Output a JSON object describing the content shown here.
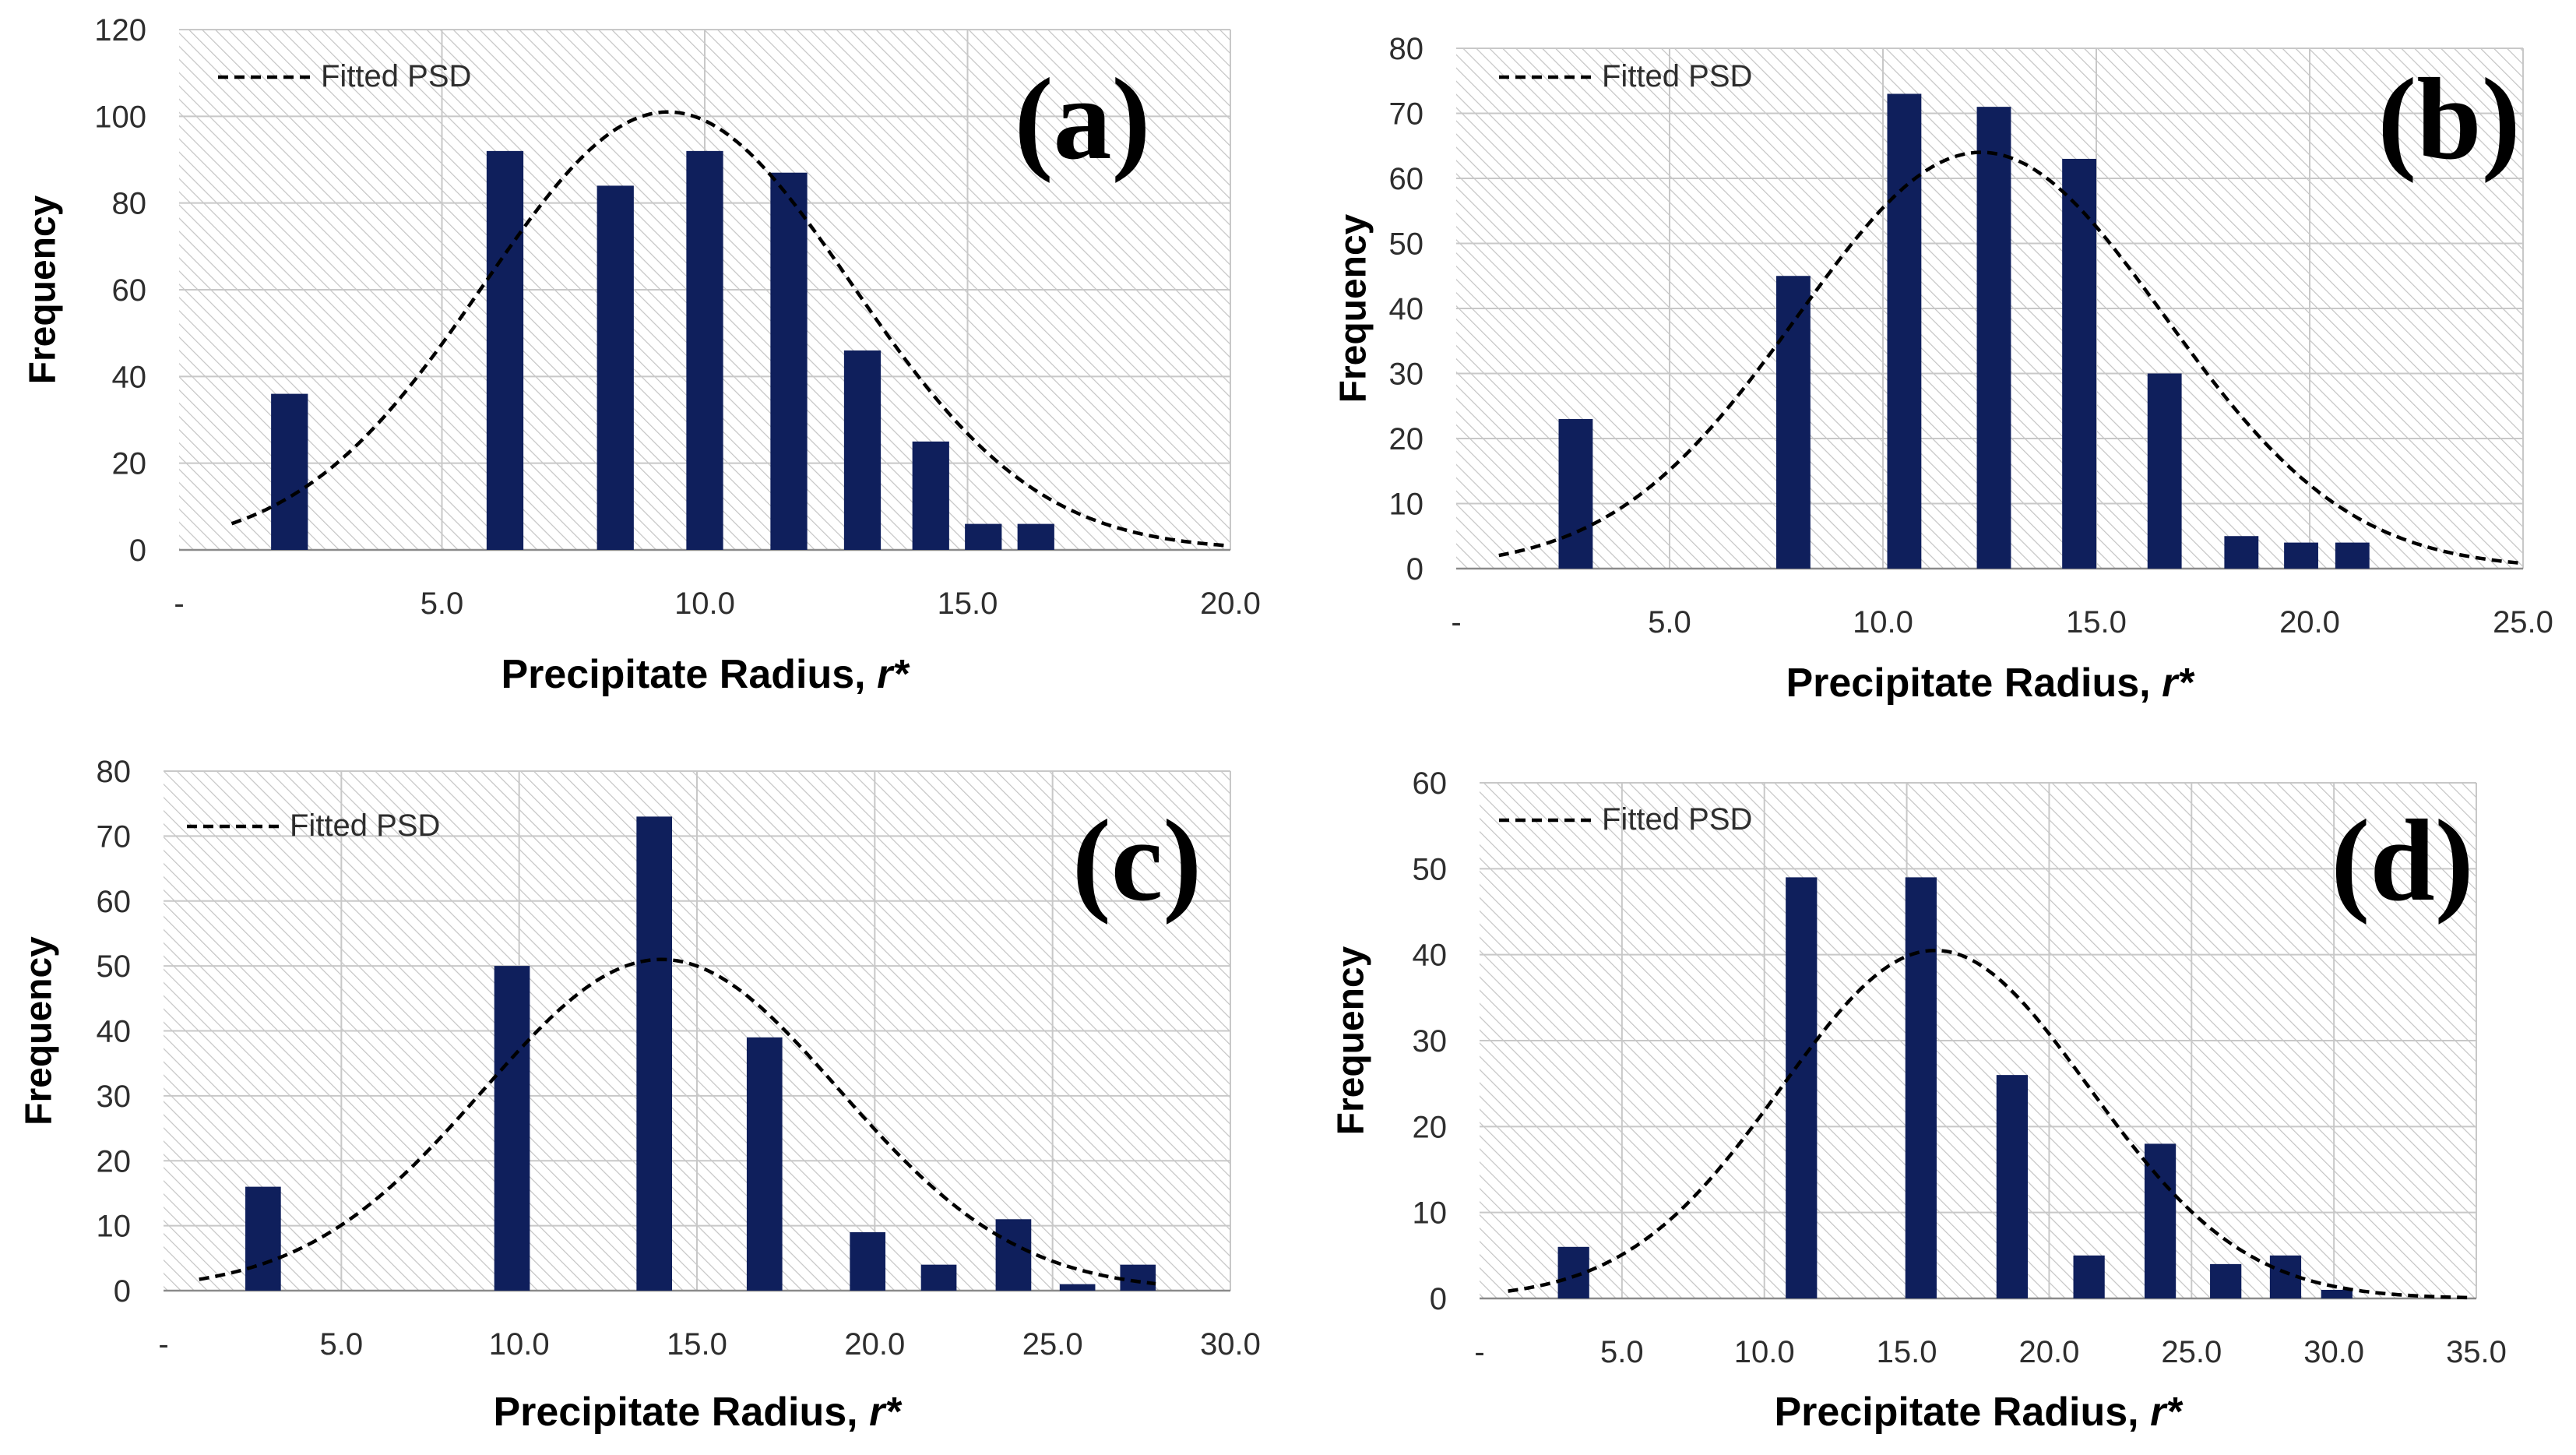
{
  "figure": {
    "colors": {
      "bar": "#0f1f5c",
      "fit_line": "#000000",
      "grid": "#c8c8c8",
      "hatch": "#c4c4c4",
      "axis": "#8a8a8a",
      "text": "#2e2e2e"
    }
  },
  "chart_data": [
    {
      "type": "bar",
      "panel_label": "(a)",
      "legend": "Fitted PSD",
      "xlabel": "Precipitate Radius, ",
      "xlabel_italic": "r*",
      "ylabel": "Frequency",
      "xlim": [
        0,
        20
      ],
      "ylim": [
        0,
        120
      ],
      "yticks": [
        0,
        20,
        40,
        60,
        80,
        100,
        120
      ],
      "xticks": [
        {
          "value": 0,
          "label": "-"
        },
        {
          "value": 5,
          "label": "5.0"
        },
        {
          "value": 10,
          "label": "10.0"
        },
        {
          "value": 15,
          "label": "15.0"
        },
        {
          "value": 20,
          "label": "20.0"
        }
      ],
      "bar_width": 0.7,
      "bars": [
        {
          "x": 2.1,
          "y": 36
        },
        {
          "x": 6.2,
          "y": 92
        },
        {
          "x": 8.3,
          "y": 84
        },
        {
          "x": 10.0,
          "y": 92
        },
        {
          "x": 11.6,
          "y": 87
        },
        {
          "x": 13.0,
          "y": 46
        },
        {
          "x": 14.3,
          "y": 25
        },
        {
          "x": 15.3,
          "y": 6
        },
        {
          "x": 16.3,
          "y": 6
        }
      ],
      "fit": {
        "x_start": 1.0,
        "x_end": 19.9,
        "mean": 9.3,
        "sd": 3.5,
        "peak": 101
      }
    },
    {
      "type": "bar",
      "panel_label": "(b)",
      "legend": "Fitted PSD",
      "xlabel": "Precipitate Radius, ",
      "xlabel_italic": "r*",
      "ylabel": "Frequency",
      "xlim": [
        0,
        25
      ],
      "ylim": [
        0,
        80
      ],
      "yticks": [
        0,
        10,
        20,
        30,
        40,
        50,
        60,
        70,
        80
      ],
      "xticks": [
        {
          "value": 0,
          "label": "-"
        },
        {
          "value": 5,
          "label": "5.0"
        },
        {
          "value": 10,
          "label": "10.0"
        },
        {
          "value": 15,
          "label": "15.0"
        },
        {
          "value": 20,
          "label": "20.0"
        },
        {
          "value": 25,
          "label": "25.0"
        }
      ],
      "bar_width": 0.8,
      "bars": [
        {
          "x": 2.8,
          "y": 23
        },
        {
          "x": 7.9,
          "y": 45
        },
        {
          "x": 10.5,
          "y": 73
        },
        {
          "x": 12.6,
          "y": 71
        },
        {
          "x": 14.6,
          "y": 63
        },
        {
          "x": 16.6,
          "y": 30
        },
        {
          "x": 18.4,
          "y": 5
        },
        {
          "x": 19.8,
          "y": 4
        },
        {
          "x": 21.0,
          "y": 4
        }
      ],
      "fit": {
        "x_start": 1.0,
        "x_end": 24.9,
        "mean": 12.3,
        "sd": 4.3,
        "peak": 64
      }
    },
    {
      "type": "bar",
      "panel_label": "(c)",
      "legend": "Fitted PSD",
      "xlabel": "Precipitate Radius, ",
      "xlabel_italic": "r*",
      "ylabel": "Frequency",
      "xlim": [
        0,
        30
      ],
      "ylim": [
        0,
        80
      ],
      "yticks": [
        0,
        10,
        20,
        30,
        40,
        50,
        60,
        70,
        80
      ],
      "xticks": [
        {
          "value": 0,
          "label": "-"
        },
        {
          "value": 5,
          "label": "5.0"
        },
        {
          "value": 10,
          "label": "10.0"
        },
        {
          "value": 15,
          "label": "15.0"
        },
        {
          "value": 20,
          "label": "20.0"
        },
        {
          "value": 25,
          "label": "25.0"
        },
        {
          "value": 30,
          "label": "30.0"
        }
      ],
      "bar_width": 1.0,
      "bars": [
        {
          "x": 2.8,
          "y": 16
        },
        {
          "x": 9.8,
          "y": 50
        },
        {
          "x": 13.8,
          "y": 73
        },
        {
          "x": 16.9,
          "y": 39
        },
        {
          "x": 19.8,
          "y": 9
        },
        {
          "x": 21.8,
          "y": 4
        },
        {
          "x": 23.9,
          "y": 11
        },
        {
          "x": 25.7,
          "y": 1
        },
        {
          "x": 27.4,
          "y": 4
        }
      ],
      "fit": {
        "x_start": 1.0,
        "x_end": 27.9,
        "mean": 14.0,
        "sd": 5.0,
        "peak": 51
      }
    },
    {
      "type": "bar",
      "panel_label": "(d)",
      "legend": "Fitted PSD",
      "xlabel": "Precipitate Radius, ",
      "xlabel_italic": "r*",
      "ylabel": "Frequency",
      "xlim": [
        0,
        35
      ],
      "ylim": [
        0,
        60
      ],
      "yticks": [
        0,
        10,
        20,
        30,
        40,
        50,
        60
      ],
      "xticks": [
        {
          "value": 0,
          "label": "-"
        },
        {
          "value": 5,
          "label": "5.0"
        },
        {
          "value": 10,
          "label": "10.0"
        },
        {
          "value": 15,
          "label": "15.0"
        },
        {
          "value": 20,
          "label": "20.0"
        },
        {
          "value": 25,
          "label": "25.0"
        },
        {
          "value": 30,
          "label": "30.0"
        },
        {
          "value": 35,
          "label": "35.0"
        }
      ],
      "bar_width": 1.1,
      "bars": [
        {
          "x": 3.3,
          "y": 6
        },
        {
          "x": 11.3,
          "y": 49
        },
        {
          "x": 15.5,
          "y": 49
        },
        {
          "x": 18.7,
          "y": 26
        },
        {
          "x": 21.4,
          "y": 5
        },
        {
          "x": 23.9,
          "y": 18
        },
        {
          "x": 26.2,
          "y": 4
        },
        {
          "x": 28.3,
          "y": 5
        },
        {
          "x": 30.1,
          "y": 1
        }
      ],
      "fit": {
        "x_start": 1.0,
        "x_end": 34.8,
        "mean": 16.0,
        "sd": 5.4,
        "peak": 40.5
      }
    }
  ]
}
